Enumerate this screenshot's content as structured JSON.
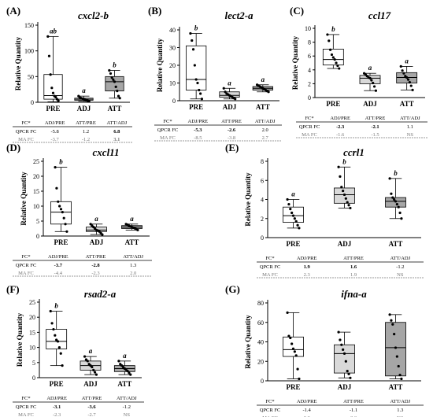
{
  "chart_data": [
    {
      "type": "box",
      "panel_label": "(A)",
      "title": "cxcl2-b",
      "ylabel": "Relative Quantity",
      "ylim": [
        0,
        150
      ],
      "yticks": [
        0,
        50,
        100,
        150
      ],
      "categories": [
        "PRE",
        "ADJ",
        "ATT"
      ],
      "boxes": [
        {
          "whisker_low": 1,
          "q1": 6,
          "median": 13,
          "q3": 54,
          "whisker_high": 128,
          "letter": "ab",
          "fill": "#ffffff",
          "points": [
            128,
            90,
            54,
            28,
            18,
            12,
            10,
            6,
            3
          ]
        },
        {
          "whisker_low": 2,
          "q1": 4,
          "median": 6,
          "q3": 8,
          "whisker_high": 12,
          "letter": "a",
          "fill": "#d9d9d9",
          "points": [
            12,
            9,
            8,
            7,
            6,
            5,
            4,
            3,
            2
          ]
        },
        {
          "whisker_low": 8,
          "q1": 22,
          "median": 40,
          "q3": 50,
          "whisker_high": 62,
          "letter": "b",
          "fill": "#a6a6a6",
          "points": [
            62,
            56,
            48,
            44,
            40,
            30,
            22,
            12,
            8
          ]
        }
      ],
      "table": {
        "header": [
          "FC*",
          "ADJ/PRE",
          "ATT/PRE",
          "ATT/ADJ"
        ],
        "rows": [
          {
            "label": "QPCR FC",
            "values": [
              "-5.8",
              "1.2",
              "6.8"
            ],
            "bold": [
              false,
              false,
              true
            ]
          },
          {
            "label": "MA FC",
            "values": [
              "-3.7",
              "-1.2",
              "3.1"
            ],
            "bold": [
              false,
              false,
              true
            ]
          }
        ]
      }
    },
    {
      "type": "box",
      "panel_label": "(B)",
      "title": "lect2-a",
      "ylabel": "Relative Quantity",
      "ylim": [
        0,
        40
      ],
      "yticks": [
        0,
        10,
        20,
        30,
        40
      ],
      "categories": [
        "PRE",
        "ADJ",
        "ATT"
      ],
      "boxes": [
        {
          "whisker_low": 1,
          "q1": 6,
          "median": 12,
          "q3": 31,
          "whisker_high": 38,
          "letter": "b",
          "fill": "#ffffff",
          "points": [
            38,
            34,
            29,
            20,
            12,
            10,
            6,
            4,
            1
          ]
        },
        {
          "whisker_low": 1,
          "q1": 2,
          "median": 3,
          "q3": 5,
          "whisker_high": 7,
          "letter": "a",
          "fill": "#d9d9d9",
          "points": [
            7,
            5,
            4,
            3.5,
            3,
            2.5,
            2,
            1.5,
            1
          ]
        },
        {
          "whisker_low": 5,
          "q1": 6,
          "median": 7,
          "q3": 8,
          "whisker_high": 9,
          "letter": "a",
          "fill": "#a6a6a6",
          "points": [
            9,
            8.5,
            8,
            7.5,
            7,
            6.5,
            6,
            5.5,
            5
          ]
        }
      ],
      "table": {
        "header": [
          "FC*",
          "ADJ/PRE",
          "ATT/PRE",
          "ATT/ADJ"
        ],
        "rows": [
          {
            "label": "QPCR FC",
            "values": [
              "-5.3",
              "-2.6",
              "2.0"
            ],
            "bold": [
              true,
              true,
              false
            ]
          },
          {
            "label": "MA FC",
            "values": [
              "-8.5",
              "-3.8",
              "2.7"
            ],
            "bold": [
              false,
              false,
              false
            ]
          }
        ]
      }
    },
    {
      "type": "box",
      "panel_label": "(C)",
      "title": "ccl17",
      "ylabel": "Relative Quantity",
      "ylim": [
        0,
        10
      ],
      "yticks": [
        0,
        2,
        4,
        6,
        8,
        10
      ],
      "categories": [
        "PRE",
        "ADJ",
        "ATT"
      ],
      "boxes": [
        {
          "whisker_low": 4.2,
          "q1": 4.7,
          "median": 5.5,
          "q3": 7.0,
          "whisker_high": 9.1,
          "letter": "b",
          "fill": "#ffffff",
          "points": [
            9.1,
            8.2,
            6.9,
            6.2,
            5.8,
            5.5,
            5.0,
            4.6,
            4.2
          ]
        },
        {
          "whisker_low": 1.0,
          "q1": 2.0,
          "median": 2.8,
          "q3": 3.2,
          "whisker_high": 3.5,
          "letter": "a",
          "fill": "#d9d9d9",
          "points": [
            3.5,
            3.3,
            3.1,
            2.9,
            2.8,
            2.5,
            2.1,
            1.6,
            1.0
          ]
        },
        {
          "whisker_low": 1.1,
          "q1": 2.1,
          "median": 2.9,
          "q3": 3.6,
          "whisker_high": 4.5,
          "letter": "a",
          "fill": "#a6a6a6",
          "points": [
            4.5,
            3.9,
            3.5,
            3.1,
            2.9,
            2.6,
            2.2,
            1.7,
            1.1
          ]
        }
      ],
      "table": {
        "header": [
          "FC*",
          "ADJ/PRE",
          "ATT/PRE",
          "ATT/ADJ"
        ],
        "rows": [
          {
            "label": "QPCR FC",
            "values": [
              "-2.3",
              "-2.1",
              "1.1"
            ],
            "bold": [
              true,
              true,
              false
            ]
          },
          {
            "label": "MA FC",
            "values": [
              "-1.6",
              "-1.5",
              "NS"
            ],
            "bold": [
              false,
              false,
              false
            ]
          }
        ]
      }
    },
    {
      "type": "box",
      "panel_label": "(D)",
      "title": "cxcl11",
      "ylabel": "Relative Quantity",
      "ylim": [
        0,
        25
      ],
      "yticks": [
        0,
        5,
        10,
        15,
        20,
        25
      ],
      "categories": [
        "PRE",
        "ADJ",
        "ATT"
      ],
      "boxes": [
        {
          "whisker_low": 1.5,
          "q1": 4,
          "median": 8,
          "q3": 11.5,
          "whisker_high": 23,
          "letter": "b",
          "fill": "#ffffff",
          "points": [
            23,
            16,
            11.5,
            10,
            9,
            8,
            6,
            4,
            1.5
          ]
        },
        {
          "whisker_low": 0.5,
          "q1": 1.5,
          "median": 2,
          "q3": 3,
          "whisker_high": 4,
          "letter": "a",
          "fill": "#d9d9d9",
          "points": [
            4,
            3.5,
            3,
            2.5,
            2,
            1.8,
            1.5,
            1,
            0.5
          ]
        },
        {
          "whisker_low": 2,
          "q1": 2.5,
          "median": 3,
          "q3": 3.5,
          "whisker_high": 4,
          "letter": "a",
          "fill": "#a6a6a6",
          "points": [
            4,
            3.8,
            3.5,
            3.2,
            3,
            2.8,
            2.6,
            2.3,
            2
          ]
        }
      ],
      "table": {
        "header": [
          "FC*",
          "ADJ/PRE",
          "ATT/PRE",
          "ATT/ADJ"
        ],
        "rows": [
          {
            "label": "QPCR FC",
            "values": [
              "-3.7",
              "-2.8",
              "1.3"
            ],
            "bold": [
              true,
              true,
              false
            ]
          },
          {
            "label": "MA FC",
            "values": [
              "-4.4",
              "-2.3",
              "2.0"
            ],
            "bold": [
              false,
              false,
              false
            ]
          }
        ]
      }
    },
    {
      "type": "box",
      "panel_label": "(E)",
      "title": "ccrl1",
      "ylabel": "Relative Quantity",
      "ylim": [
        0,
        8
      ],
      "yticks": [
        0,
        2,
        4,
        6,
        8
      ],
      "categories": [
        "PRE",
        "ADJ",
        "ATT"
      ],
      "boxes": [
        {
          "whisker_low": 1.0,
          "q1": 1.6,
          "median": 2.3,
          "q3": 3.2,
          "whisker_high": 4.0,
          "letter": "a",
          "fill": "#ffffff",
          "points": [
            4.0,
            3.5,
            3.0,
            2.6,
            2.3,
            2.0,
            1.7,
            1.3,
            1.0
          ]
        },
        {
          "whisker_low": 3.1,
          "q1": 3.6,
          "median": 4.5,
          "q3": 5.2,
          "whisker_high": 7.4,
          "letter": "b",
          "fill": "#d9d9d9",
          "points": [
            7.4,
            6.4,
            5.3,
            4.9,
            4.5,
            4.1,
            3.7,
            3.4,
            3.1
          ]
        },
        {
          "whisker_low": 2.0,
          "q1": 3.2,
          "median": 3.8,
          "q3": 4.2,
          "whisker_high": 6.2,
          "letter": "b",
          "fill": "#a6a6a6",
          "points": [
            6.2,
            4.6,
            4.2,
            4.0,
            3.8,
            3.5,
            3.2,
            2.6,
            2.0
          ]
        }
      ],
      "table": {
        "header": [
          "FC*",
          "ADJ/PRE",
          "ATT/PRE",
          "ATT/ADJ"
        ],
        "rows": [
          {
            "label": "QPCR FC",
            "values": [
              "1.9",
              "1.6",
              "-1.2"
            ],
            "bold": [
              true,
              true,
              false
            ]
          },
          {
            "label": "MA FC",
            "values": [
              "2.3",
              "1.9",
              "NS"
            ],
            "bold": [
              false,
              false,
              false
            ]
          }
        ]
      }
    },
    {
      "type": "box",
      "panel_label": "(F)",
      "title": "rsad2-a",
      "ylabel": "Relative Quantity",
      "ylim": [
        0,
        25
      ],
      "yticks": [
        0,
        5,
        10,
        15,
        20,
        25
      ],
      "categories": [
        "PRE",
        "ADJ",
        "ATT"
      ],
      "boxes": [
        {
          "whisker_low": 4,
          "q1": 9.5,
          "median": 12,
          "q3": 16,
          "whisker_high": 22,
          "letter": "b",
          "fill": "#ffffff",
          "points": [
            22,
            18,
            16,
            14,
            12.5,
            12,
            10,
            8,
            4
          ]
        },
        {
          "whisker_low": 1,
          "q1": 2.5,
          "median": 4,
          "q3": 5.5,
          "whisker_high": 7,
          "letter": "a",
          "fill": "#d9d9d9",
          "points": [
            7,
            6,
            5.5,
            4.5,
            4,
            3.5,
            2.5,
            1.8,
            1
          ]
        },
        {
          "whisker_low": 1,
          "q1": 2,
          "median": 3,
          "q3": 4,
          "whisker_high": 5.5,
          "letter": "a",
          "fill": "#a6a6a6",
          "points": [
            5.5,
            4.5,
            4,
            3.5,
            3,
            2.6,
            2.2,
            1.6,
            1
          ]
        }
      ],
      "table": {
        "header": [
          "FC*",
          "ADJ/PRE",
          "ATT/PRE",
          "ATT/ADJ"
        ],
        "rows": [
          {
            "label": "QPCR FC",
            "values": [
              "-3.1",
              "-3.6",
              "-1.2"
            ],
            "bold": [
              true,
              true,
              false
            ]
          },
          {
            "label": "MA FC",
            "values": [
              "-2.3",
              "-2.7",
              "NS"
            ],
            "bold": [
              false,
              false,
              false
            ]
          }
        ]
      }
    },
    {
      "type": "box",
      "panel_label": "(G)",
      "title": "ifna-a",
      "ylabel": "Relative Quantity",
      "ylim": [
        0,
        80
      ],
      "yticks": [
        0,
        20,
        40,
        60,
        80
      ],
      "categories": [
        "PRE",
        "ADJ",
        "ATT"
      ],
      "boxes": [
        {
          "whisker_low": 2,
          "q1": 25,
          "median": 32,
          "q3": 45,
          "whisker_high": 70,
          "letter": "",
          "fill": "#ffffff",
          "points": [
            70,
            46,
            44,
            38,
            33,
            30,
            26,
            12,
            2
          ]
        },
        {
          "whisker_low": 3,
          "q1": 8,
          "median": 28,
          "q3": 37,
          "whisker_high": 50,
          "letter": "",
          "fill": "#d9d9d9",
          "points": [
            50,
            42,
            37,
            32,
            28,
            20,
            10,
            7,
            3
          ]
        },
        {
          "whisker_low": 2,
          "q1": 5,
          "median": 34,
          "q3": 60,
          "whisker_high": 68,
          "letter": "",
          "fill": "#a6a6a6",
          "points": [
            68,
            62,
            58,
            48,
            34,
            25,
            15,
            6,
            2
          ]
        }
      ],
      "table": {
        "header": [
          "FC*",
          "ADJ/PRE",
          "ATT/PRE",
          "ATT/ADJ"
        ],
        "rows": [
          {
            "label": "QPCR FC",
            "values": [
              "-1.4",
              "-1.1",
              "1.3"
            ],
            "bold": [
              false,
              false,
              false
            ]
          },
          {
            "label": "MA FC",
            "values": [
              "2.2",
              "2.3",
              "NS"
            ],
            "bold": [
              false,
              false,
              false
            ]
          }
        ]
      }
    }
  ]
}
